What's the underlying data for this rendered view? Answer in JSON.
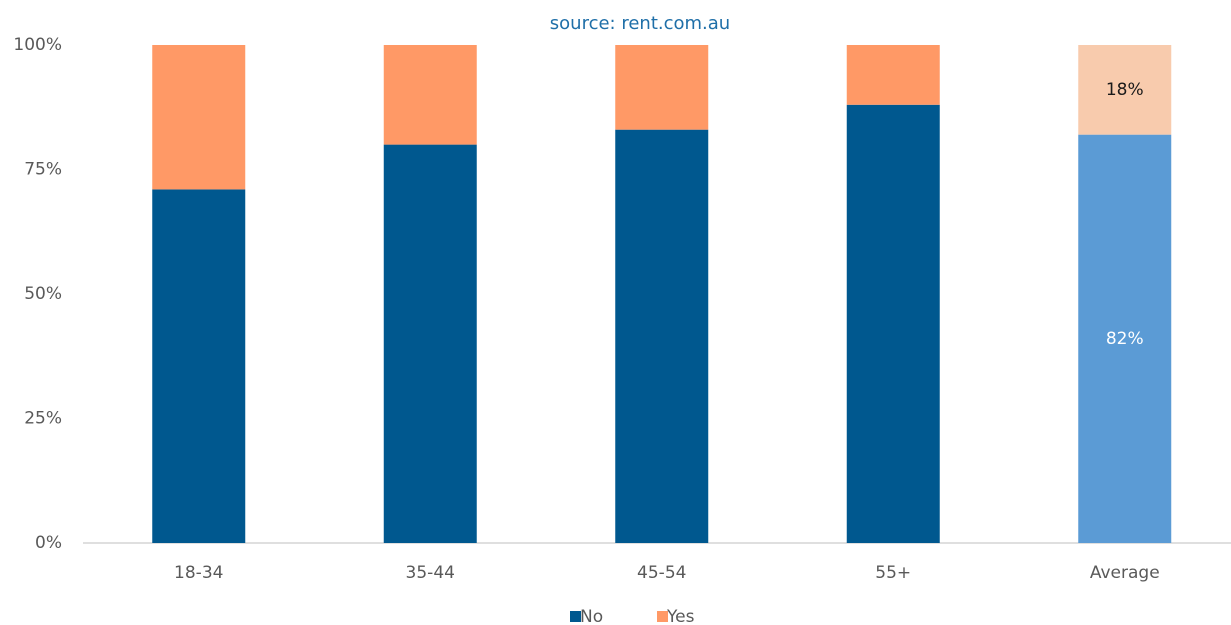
{
  "chart_data": {
    "type": "stacked_bar",
    "subtitle": "source: rent.com.au",
    "categories": [
      "18-34",
      "35-44",
      "45-54",
      "55+",
      "Average"
    ],
    "series": [
      {
        "name": "No",
        "color": "#00588f",
        "colors": [
          "#00588f",
          "#00588f",
          "#00588f",
          "#00588f",
          "#5b9bd5"
        ],
        "values": [
          71,
          80,
          83,
          88,
          82
        ],
        "value_labels": [
          null,
          null,
          null,
          null,
          "82%"
        ]
      },
      {
        "name": "Yes",
        "color": "#ff9966",
        "colors": [
          "#ff9966",
          "#ff9966",
          "#ff9966",
          "#ff9966",
          "#f8cbad"
        ],
        "values": [
          29,
          20,
          17,
          12,
          18
        ],
        "value_labels": [
          null,
          null,
          null,
          null,
          "18%"
        ]
      }
    ],
    "ylim": [
      0,
      100
    ],
    "yticks": [
      {
        "value": 0,
        "label": "0%"
      },
      {
        "value": 25,
        "label": "25%"
      },
      {
        "value": 50,
        "label": "50%"
      },
      {
        "value": 75,
        "label": "75%"
      },
      {
        "value": 100,
        "label": "100%"
      }
    ],
    "grid": false,
    "legend": "bottom"
  }
}
